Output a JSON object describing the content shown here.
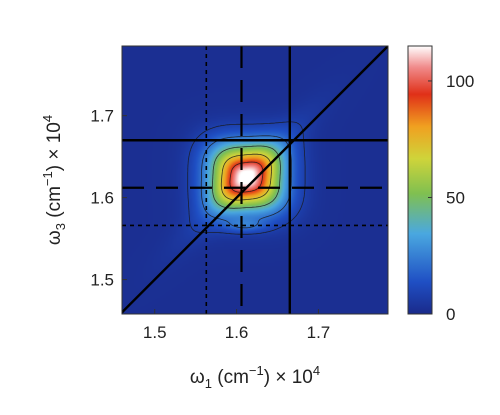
{
  "chart_data": {
    "type": "heatmap",
    "title": "",
    "xlabel": {
      "base": "ω",
      "sub": "1",
      "unit_open": " (cm",
      "unit_sup": "−1",
      "unit_close": ")",
      "mult": " × 10",
      "exp": "4"
    },
    "ylabel": {
      "base": "ω",
      "sub": "3",
      "unit_open": " (cm",
      "unit_sup": "−1",
      "unit_close": ")",
      "mult": " × 10",
      "exp": "4"
    },
    "xlim": [
      1.46,
      1.785
    ],
    "ylim": [
      1.458,
      1.785
    ],
    "xticks": [
      1.5,
      1.6,
      1.7
    ],
    "xtick_labels": [
      "1.5",
      "1.6",
      "1.7"
    ],
    "yticks": [
      1.5,
      1.6,
      1.7
    ],
    "ytick_labels": [
      "1.5",
      "1.6",
      "1.7"
    ],
    "colorbar": {
      "range": [
        0,
        115
      ],
      "ticks": [
        0,
        50,
        100
      ],
      "tick_labels": [
        "0",
        "50",
        "100"
      ],
      "colormap": "jet"
    },
    "peak": {
      "x": 1.612,
      "y": 1.625,
      "value": 115
    },
    "contour_levels": [
      8,
      22,
      45,
      70,
      95
    ],
    "reference_lines": [
      {
        "kind": "vertical",
        "x": 1.665,
        "style": "solid"
      },
      {
        "kind": "vertical",
        "x": 1.606,
        "style": "dashed"
      },
      {
        "kind": "vertical",
        "x": 1.563,
        "style": "dotted"
      },
      {
        "kind": "horizontal",
        "y": 1.67,
        "style": "solid"
      },
      {
        "kind": "horizontal",
        "y": 1.612,
        "style": "dashed"
      },
      {
        "kind": "horizontal",
        "y": 1.566,
        "style": "dotted"
      },
      {
        "kind": "diagonal",
        "style": "solid"
      }
    ],
    "grid": false
  }
}
